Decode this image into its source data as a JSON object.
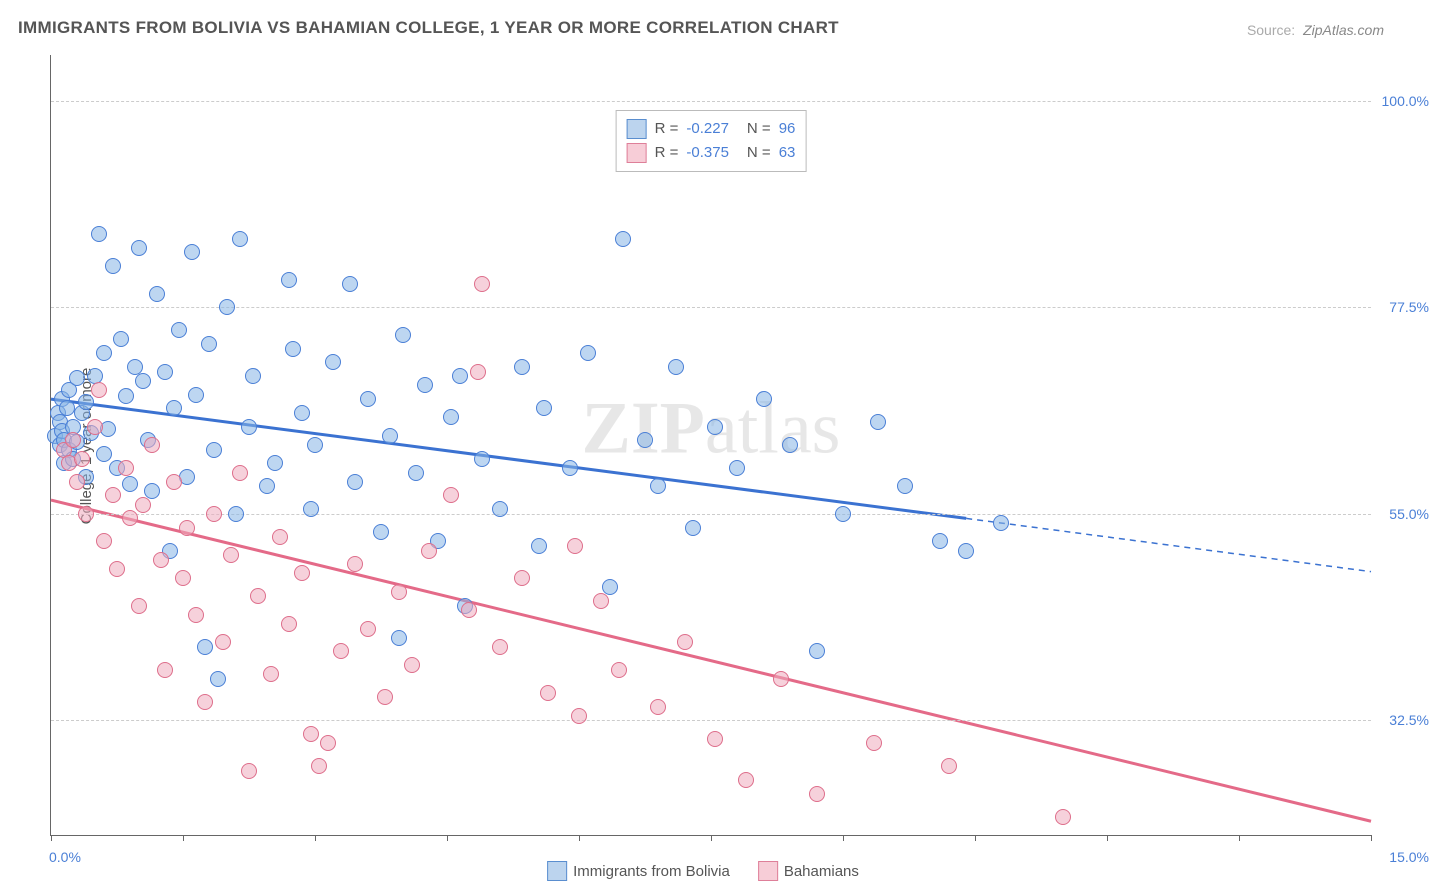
{
  "title": "IMMIGRANTS FROM BOLIVIA VS BAHAMIAN COLLEGE, 1 YEAR OR MORE CORRELATION CHART",
  "source_label": "Source:",
  "source_text": "ZipAtlas.com",
  "y_axis_label": "College, 1 year or more",
  "watermark_a": "ZIP",
  "watermark_b": "atlas",
  "x_axis": {
    "min": 0.0,
    "max": 15.0,
    "left_label": "0.0%",
    "right_label": "15.0%",
    "tick_positions": [
      0.0,
      1.5,
      3.0,
      4.5,
      6.0,
      7.5,
      9.0,
      10.5,
      12.0,
      13.5,
      15.0
    ]
  },
  "y_axis": {
    "min": 20.0,
    "max": 105.0,
    "grid_values": [
      32.5,
      55.0,
      77.5,
      100.0
    ],
    "grid_labels": [
      "32.5%",
      "55.0%",
      "77.5%",
      "100.0%"
    ]
  },
  "stats": [
    {
      "swatch_fill": "#bcd4ee",
      "swatch_border": "#5a8ecf",
      "r_label": "R =",
      "r_value": "-0.227",
      "n_label": "N =",
      "n_value": "96"
    },
    {
      "swatch_fill": "#f7cdd7",
      "swatch_border": "#de7f99",
      "r_label": "R =",
      "r_value": "-0.375",
      "n_label": "N =",
      "n_value": "63"
    }
  ],
  "legend": [
    {
      "swatch_fill": "#bcd4ee",
      "swatch_border": "#5a8ecf",
      "label": "Immigrants from Bolivia"
    },
    {
      "swatch_fill": "#f7cdd7",
      "swatch_border": "#de7f99",
      "label": "Bahamians"
    }
  ],
  "series": [
    {
      "name": "bolivia",
      "point_fill": "rgba(135,181,230,0.55)",
      "point_stroke": "#4a7fd6",
      "point_size": 16,
      "trend_color": "#3b72d1",
      "trend_width": 3,
      "trend": {
        "x1": 0.0,
        "y1": 67.5,
        "x2_solid": 10.4,
        "y2_solid": 54.5,
        "x2_dash": 15.0,
        "y2_dash": 48.7
      },
      "points": [
        [
          0.05,
          63.5
        ],
        [
          0.08,
          66.0
        ],
        [
          0.1,
          62.5
        ],
        [
          0.1,
          65.0
        ],
        [
          0.12,
          64.0
        ],
        [
          0.12,
          67.5
        ],
        [
          0.15,
          60.5
        ],
        [
          0.15,
          63.0
        ],
        [
          0.18,
          66.5
        ],
        [
          0.2,
          62.0
        ],
        [
          0.2,
          68.5
        ],
        [
          0.25,
          61.0
        ],
        [
          0.25,
          64.5
        ],
        [
          0.3,
          69.8
        ],
        [
          0.3,
          62.8
        ],
        [
          0.35,
          66.0
        ],
        [
          0.4,
          59.0
        ],
        [
          0.4,
          67.2
        ],
        [
          0.45,
          63.8
        ],
        [
          0.5,
          70.0
        ],
        [
          0.55,
          85.5
        ],
        [
          0.6,
          61.5
        ],
        [
          0.6,
          72.5
        ],
        [
          0.65,
          64.2
        ],
        [
          0.7,
          82.0
        ],
        [
          0.75,
          60.0
        ],
        [
          0.8,
          74.0
        ],
        [
          0.85,
          67.8
        ],
        [
          0.9,
          58.2
        ],
        [
          0.95,
          71.0
        ],
        [
          1.0,
          84.0
        ],
        [
          1.05,
          69.5
        ],
        [
          1.1,
          63.0
        ],
        [
          1.15,
          57.5
        ],
        [
          1.2,
          79.0
        ],
        [
          1.3,
          70.5
        ],
        [
          1.35,
          51.0
        ],
        [
          1.4,
          66.5
        ],
        [
          1.45,
          75.0
        ],
        [
          1.55,
          59.0
        ],
        [
          1.6,
          83.5
        ],
        [
          1.65,
          68.0
        ],
        [
          1.75,
          40.5
        ],
        [
          1.8,
          73.5
        ],
        [
          1.85,
          62.0
        ],
        [
          1.9,
          37.0
        ],
        [
          2.0,
          77.5
        ],
        [
          2.1,
          55.0
        ],
        [
          2.15,
          85.0
        ],
        [
          2.25,
          64.5
        ],
        [
          2.3,
          70.0
        ],
        [
          2.45,
          58.0
        ],
        [
          2.55,
          60.5
        ],
        [
          2.7,
          80.5
        ],
        [
          2.75,
          73.0
        ],
        [
          2.85,
          66.0
        ],
        [
          2.95,
          55.5
        ],
        [
          3.0,
          62.5
        ],
        [
          3.2,
          71.5
        ],
        [
          3.4,
          80.0
        ],
        [
          3.45,
          58.5
        ],
        [
          3.6,
          67.5
        ],
        [
          3.75,
          53.0
        ],
        [
          3.85,
          63.5
        ],
        [
          3.95,
          41.5
        ],
        [
          4.0,
          74.5
        ],
        [
          4.15,
          59.5
        ],
        [
          4.25,
          69.0
        ],
        [
          4.4,
          52.0
        ],
        [
          4.55,
          65.5
        ],
        [
          4.65,
          70.0
        ],
        [
          4.7,
          45.0
        ],
        [
          4.9,
          61.0
        ],
        [
          5.1,
          55.5
        ],
        [
          5.35,
          71.0
        ],
        [
          5.55,
          51.5
        ],
        [
          5.6,
          66.5
        ],
        [
          5.9,
          60.0
        ],
        [
          6.1,
          72.5
        ],
        [
          6.35,
          47.0
        ],
        [
          6.5,
          85.0
        ],
        [
          6.75,
          63.0
        ],
        [
          6.9,
          58.0
        ],
        [
          7.1,
          71.0
        ],
        [
          7.3,
          53.5
        ],
        [
          7.55,
          64.5
        ],
        [
          7.8,
          60.0
        ],
        [
          8.1,
          67.5
        ],
        [
          8.4,
          62.5
        ],
        [
          8.7,
          40.0
        ],
        [
          9.0,
          55.0
        ],
        [
          9.4,
          65.0
        ],
        [
          9.7,
          58.0
        ],
        [
          10.1,
          52.0
        ],
        [
          10.4,
          51.0
        ],
        [
          10.8,
          54.0
        ]
      ]
    },
    {
      "name": "bahamians",
      "point_fill": "rgba(238,172,189,0.55)",
      "point_stroke": "#de6e8b",
      "point_size": 16,
      "trend_color": "#e46a88",
      "trend_width": 3,
      "trend": {
        "x1": 0.0,
        "y1": 56.5,
        "x2_solid": 15.0,
        "y2_solid": 21.5,
        "x2_dash": 15.0,
        "y2_dash": 21.5
      },
      "points": [
        [
          0.15,
          62.0
        ],
        [
          0.2,
          60.5
        ],
        [
          0.25,
          63.0
        ],
        [
          0.3,
          58.5
        ],
        [
          0.35,
          61.0
        ],
        [
          0.4,
          55.0
        ],
        [
          0.5,
          64.5
        ],
        [
          0.55,
          68.5
        ],
        [
          0.6,
          52.0
        ],
        [
          0.7,
          57.0
        ],
        [
          0.75,
          49.0
        ],
        [
          0.85,
          60.0
        ],
        [
          0.9,
          54.5
        ],
        [
          1.0,
          45.0
        ],
        [
          1.05,
          56.0
        ],
        [
          1.15,
          62.5
        ],
        [
          1.25,
          50.0
        ],
        [
          1.3,
          38.0
        ],
        [
          1.4,
          58.5
        ],
        [
          1.5,
          48.0
        ],
        [
          1.55,
          53.5
        ],
        [
          1.65,
          44.0
        ],
        [
          1.75,
          34.5
        ],
        [
          1.85,
          55.0
        ],
        [
          1.95,
          41.0
        ],
        [
          2.05,
          50.5
        ],
        [
          2.15,
          59.5
        ],
        [
          2.25,
          27.0
        ],
        [
          2.35,
          46.0
        ],
        [
          2.5,
          37.5
        ],
        [
          2.6,
          52.5
        ],
        [
          2.7,
          43.0
        ],
        [
          2.85,
          48.5
        ],
        [
          2.95,
          31.0
        ],
        [
          3.05,
          27.5
        ],
        [
          3.15,
          30.0
        ],
        [
          3.3,
          40.0
        ],
        [
          3.45,
          49.5
        ],
        [
          3.6,
          42.5
        ],
        [
          3.8,
          35.0
        ],
        [
          3.95,
          46.5
        ],
        [
          4.1,
          38.5
        ],
        [
          4.3,
          51.0
        ],
        [
          4.55,
          57.0
        ],
        [
          4.75,
          44.5
        ],
        [
          4.85,
          70.5
        ],
        [
          4.9,
          80.0
        ],
        [
          5.1,
          40.5
        ],
        [
          5.35,
          48.0
        ],
        [
          5.65,
          35.5
        ],
        [
          5.95,
          51.5
        ],
        [
          6.0,
          33.0
        ],
        [
          6.25,
          45.5
        ],
        [
          6.45,
          38.0
        ],
        [
          6.9,
          34.0
        ],
        [
          7.2,
          41.0
        ],
        [
          7.55,
          30.5
        ],
        [
          7.9,
          26.0
        ],
        [
          8.3,
          37.0
        ],
        [
          8.7,
          24.5
        ],
        [
          9.35,
          30.0
        ],
        [
          10.2,
          27.5
        ],
        [
          11.5,
          22.0
        ]
      ]
    }
  ]
}
